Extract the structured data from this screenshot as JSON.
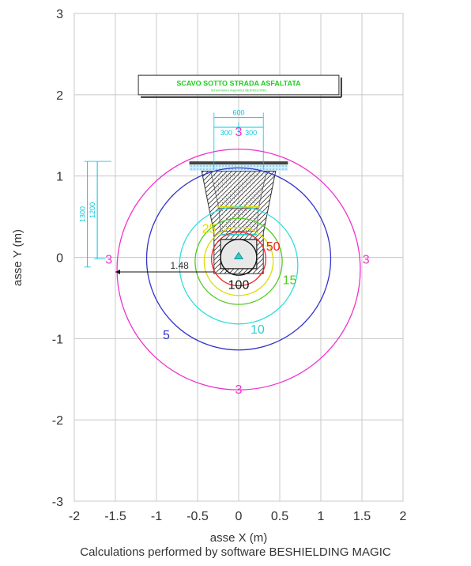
{
  "chart_data": {
    "type": "contour",
    "xlabel": "asse X (m)",
    "ylabel": "asse Y (m)",
    "xlim": [
      -2,
      2
    ],
    "ylim": [
      -3,
      3
    ],
    "xticks": [
      "-2",
      "-1.5",
      "-1",
      "-0.5",
      "0",
      "0.5",
      "1",
      "1.5",
      "2"
    ],
    "yticks": [
      "-3",
      "-2",
      "-1",
      "0",
      "1",
      "2",
      "3"
    ],
    "grid": true,
    "contours": [
      {
        "level": "3",
        "color": "#ee33cc",
        "center": [
          0,
          -0.15
        ],
        "radius": 1.48
      },
      {
        "level": "5",
        "color": "#3333cc",
        "center": [
          0,
          -0.02
        ],
        "radius": 1.12
      },
      {
        "level": "10",
        "color": "#33dddd",
        "center": [
          0,
          -0.1
        ],
        "radius": 0.72
      },
      {
        "level": "15",
        "color": "#55cc22",
        "center": [
          0,
          -0.05
        ],
        "radius": 0.53
      },
      {
        "level": "25",
        "color": "#dddd00",
        "center": [
          0,
          -0.05
        ],
        "radius": 0.42
      },
      {
        "level": "50",
        "color": "#ee2222",
        "center": [
          0,
          -0.02
        ],
        "radius": 0.33
      },
      {
        "level": "100",
        "color": "#111111",
        "center": [
          0,
          0.0
        ],
        "radius": 0.22
      }
    ],
    "contour_labels": [
      {
        "text": "3",
        "x": 0.0,
        "y": 1.55,
        "color": "#ee33cc"
      },
      {
        "text": "3",
        "x": -1.58,
        "y": -0.02,
        "color": "#ee33cc"
      },
      {
        "text": "3",
        "x": 1.55,
        "y": -0.02,
        "color": "#ee33cc"
      },
      {
        "text": "3",
        "x": 0.0,
        "y": -1.62,
        "color": "#ee33cc"
      },
      {
        "text": "5",
        "x": -0.88,
        "y": -0.95,
        "color": "#3333cc"
      },
      {
        "text": "10",
        "x": 0.23,
        "y": -0.88,
        "color": "#33cccc"
      },
      {
        "text": "15",
        "x": 0.62,
        "y": -0.27,
        "color": "#55cc22"
      },
      {
        "text": "25",
        "x": -0.36,
        "y": 0.36,
        "color": "#dddd00"
      },
      {
        "text": "50",
        "x": 0.42,
        "y": 0.14,
        "color": "#ee2222"
      },
      {
        "text": "100",
        "x": 0.0,
        "y": -0.33,
        "color": "#111111"
      }
    ],
    "annotation": {
      "text": "1.48",
      "x": -1.5,
      "y": -0.18
    },
    "banner": {
      "title": "SCAVO SOTTO STRADA ASFALTATA",
      "subtitle": "Schermatura magnetica BESHIELDING"
    },
    "dimensions": {
      "width": "600",
      "half_left": "300",
      "half_right": "300",
      "depth_outer": "1300",
      "depth_inner": "1200"
    }
  },
  "footer": {
    "caption": "Calculations performed by software BESHIELDING MAGIC"
  }
}
